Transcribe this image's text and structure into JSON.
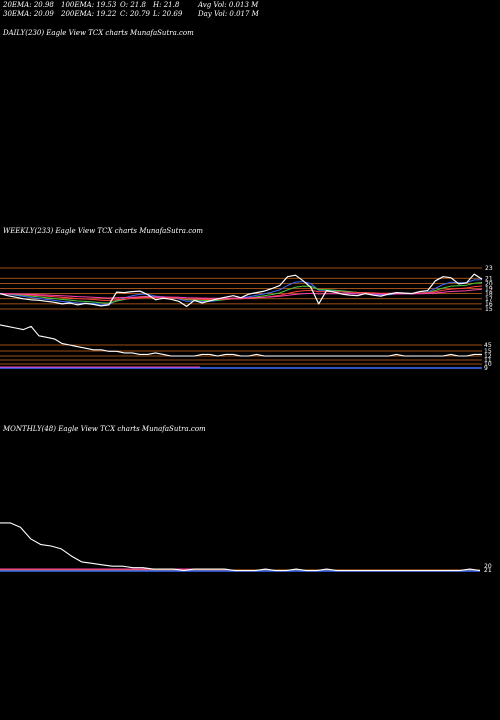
{
  "header": {
    "ema20": "20EMA: 20.98",
    "ema100": "100EMA: 19.53",
    "open": "O: 21.8",
    "high": "H: 21.8",
    "avg_vol": "Avg Vol: 0.013 M",
    "ema30": "30EMA: 20.09",
    "ema200": "200EMA: 19.22",
    "close": "C: 20.79",
    "low": "L: 20.69",
    "day_vol": "Day Vol: 0.017 M"
  },
  "panels": {
    "daily_title": "DAILY(230) Eagle  View  TCX  charts MunafaSutra.com",
    "weekly_title": "WEEKLY(233) Eagle  View  TCX  charts MunafaSutra.com",
    "monthly_title": "MONTHLY(48) Eagle  View  TCX  charts MunafaSutra.com"
  },
  "colors": {
    "background": "#000000",
    "price_line": "#ffffff",
    "level_line": "#d2691e",
    "ema_blue": "#3a6cff",
    "ema_pink": "#ff3fb0",
    "ema_red": "#ff4040",
    "ema_green": "#44cc44"
  },
  "chart_data": [
    {
      "type": "line",
      "title": "WEEKLY(233) Eagle  View  TCX  charts MunafaSutra.com",
      "price_ticks": [
        "23",
        "21",
        "20",
        "19",
        "18",
        "17",
        "16",
        "15"
      ],
      "price_ylim": [
        15,
        23
      ],
      "price_series": [
        {
          "values": [
            18.0,
            17.6,
            17.3,
            17.0,
            16.8,
            16.7,
            16.5,
            16.3,
            16.0,
            16.2,
            15.8,
            16.1,
            15.9,
            15.6,
            15.8,
            18.3,
            18.2,
            18.4,
            18.5,
            17.8,
            16.8,
            17.1,
            16.9,
            16.5,
            15.5,
            16.7,
            16.2,
            16.6,
            17.0,
            17.3,
            17.6,
            17.2,
            17.9,
            18.2,
            18.5,
            19.0,
            19.6,
            21.3,
            21.6,
            20.5,
            19.2,
            16.0,
            18.6,
            18.3,
            17.9,
            17.7,
            17.6,
            18.0,
            17.7,
            17.5,
            17.9,
            18.2,
            18.1,
            18.0,
            18.4,
            18.6,
            20.5,
            21.3,
            21.1,
            19.9,
            20.1,
            21.8,
            20.8
          ]
        }
      ],
      "volume_ticks": [
        "45",
        "15",
        "12",
        "11",
        "10",
        "9"
      ],
      "volume_series": {
        "values": [
          29,
          28,
          27,
          26,
          28,
          22,
          21,
          20,
          17,
          16,
          15,
          14,
          13,
          13,
          12,
          12,
          11,
          11,
          10,
          10,
          11,
          10,
          9,
          9,
          9,
          9,
          10,
          10,
          9,
          10,
          10,
          9,
          9,
          10,
          9,
          9,
          9,
          9,
          9,
          9,
          9,
          9,
          9,
          9,
          9,
          9,
          9,
          9,
          9,
          9,
          9,
          10,
          9,
          9,
          9,
          9,
          9,
          9,
          10,
          9,
          9,
          10,
          10
        ]
      }
    },
    {
      "type": "line",
      "title": "MONTHLY(48) Eagle  View  TCX  charts MunafaSutra.com",
      "price_ticks": [
        "20",
        "21"
      ],
      "volume_series": {
        "values": [
          40,
          40,
          37,
          29,
          25,
          24,
          22,
          17,
          13,
          12,
          11,
          10,
          10,
          9,
          9,
          8,
          8,
          8,
          7,
          8,
          8,
          8,
          8,
          7,
          7,
          7,
          8,
          7,
          7,
          8,
          7,
          7,
          8,
          7,
          7,
          7,
          7,
          7,
          7,
          7,
          7,
          7,
          7,
          7,
          7,
          7,
          8,
          7
        ]
      }
    }
  ]
}
